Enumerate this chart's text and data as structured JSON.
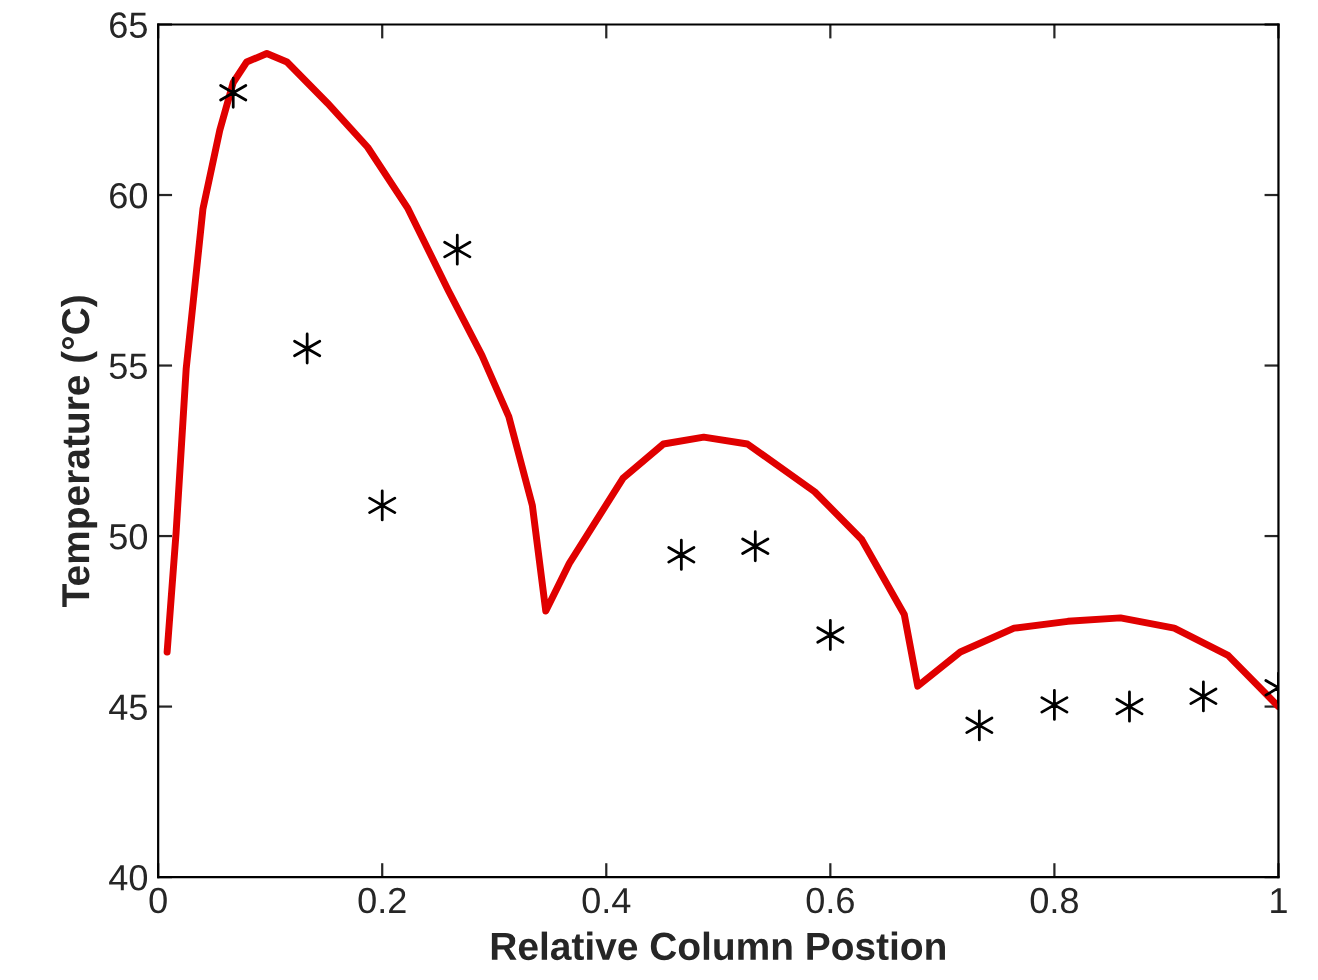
{
  "chart_data": {
    "type": "line",
    "xlabel": "Relative Column Postion",
    "ylabel": "Temperature (°C)",
    "xlim": [
      0,
      1
    ],
    "ylim": [
      40,
      65
    ],
    "xticks": [
      0,
      0.2,
      0.4,
      0.6,
      0.8,
      1
    ],
    "yticks": [
      40,
      45,
      50,
      55,
      60,
      65
    ],
    "grid": false,
    "series": [
      {
        "color": "#e00000",
        "marker": "none",
        "line_style": "solid",
        "x": [
          0.008,
          0.016,
          0.025,
          0.04,
          0.055,
          0.067,
          0.079,
          0.097,
          0.115,
          0.151,
          0.187,
          0.223,
          0.259,
          0.289,
          0.313,
          0.334,
          0.346,
          0.367,
          0.415,
          0.451,
          0.487,
          0.526,
          0.586,
          0.628,
          0.666,
          0.678,
          0.716,
          0.764,
          0.812,
          0.859,
          0.907,
          0.955,
          1.0
        ],
        "values": [
          46.6,
          50.1,
          54.9,
          59.6,
          61.9,
          63.3,
          63.9,
          64.15,
          63.9,
          62.7,
          61.4,
          59.6,
          57.2,
          55.3,
          53.5,
          50.9,
          47.8,
          49.2,
          51.7,
          52.7,
          52.9,
          52.7,
          51.3,
          49.9,
          47.7,
          45.6,
          46.6,
          47.3,
          47.5,
          47.6,
          47.3,
          46.5,
          45.0
        ]
      },
      {
        "type": "scatter",
        "color": "#000000",
        "marker": "cross",
        "x": [
          0.067,
          0.133,
          0.2,
          0.267,
          0.467,
          0.533,
          0.6,
          0.733,
          0.8,
          0.867,
          0.933,
          1.0
        ],
        "values": [
          63.0,
          55.5,
          50.9,
          58.4,
          49.45,
          49.7,
          47.1,
          44.45,
          45.05,
          45.0,
          45.3,
          45.55
        ]
      }
    ]
  }
}
